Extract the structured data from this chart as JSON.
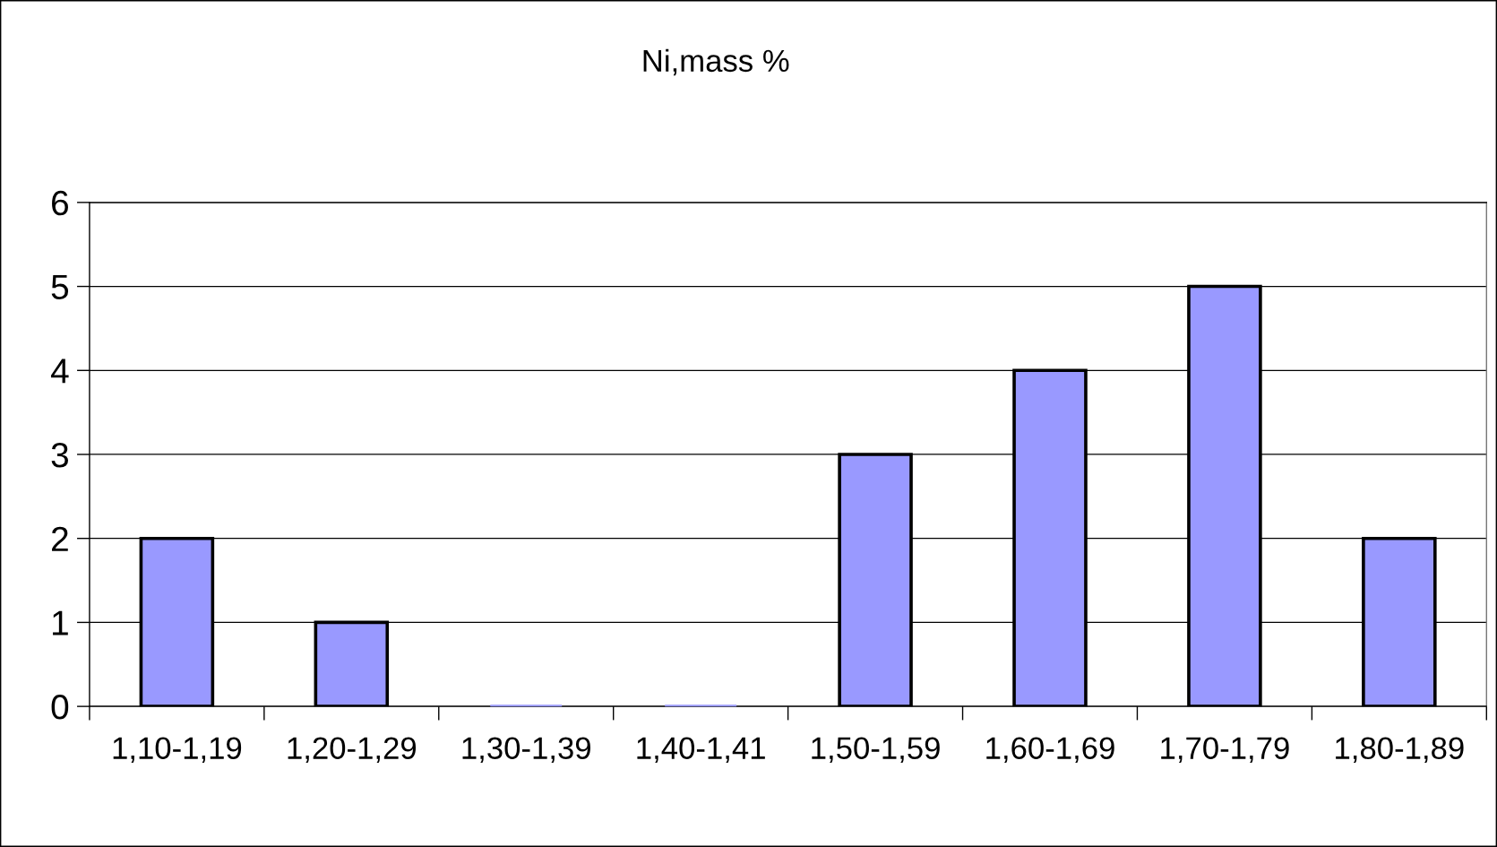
{
  "chart_data": {
    "type": "bar",
    "title": "Ni,mass %",
    "categories": [
      "1,10-1,19",
      "1,20-1,29",
      "1,30-1,39",
      "1,40-1,41",
      "1,50-1,59",
      "1,60-1,69",
      "1,70-1,79",
      "1,80-1,89"
    ],
    "values": [
      2,
      1,
      0,
      0,
      3,
      4,
      5,
      2
    ],
    "color": "#9999ff",
    "ylim": [
      0,
      6
    ],
    "yticks": [
      0,
      1,
      2,
      3,
      4,
      5,
      6
    ],
    "grid": "y",
    "legend": false
  }
}
